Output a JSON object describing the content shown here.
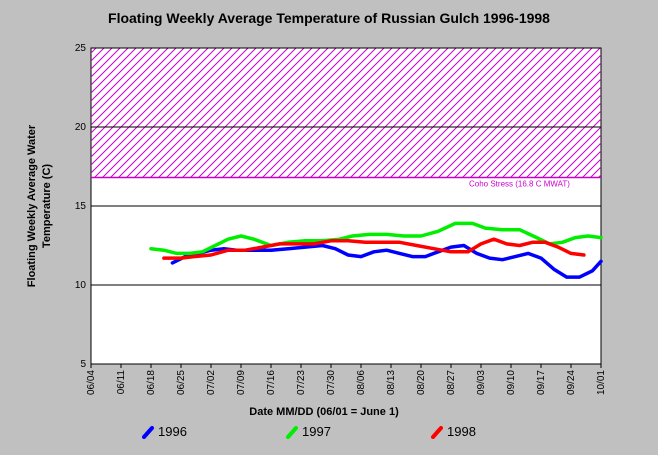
{
  "chart_data": {
    "type": "line",
    "title": "Floating Weekly Average Temperature of Russian Gulch 1996-1998",
    "xlabel": "Date MM/DD (06/01 = June 1)",
    "ylabel": "Floating Weekly Average Water Temperature (C)",
    "ylim": [
      5,
      25
    ],
    "yticks": [
      5,
      10,
      15,
      20,
      25
    ],
    "xlim": [
      "06/04",
      "10/01"
    ],
    "xticks": [
      "06/04",
      "06/11",
      "06/18",
      "06/25",
      "07/02",
      "07/09",
      "07/16",
      "07/23",
      "07/30",
      "08/06",
      "08/13",
      "08/20",
      "08/27",
      "09/03",
      "09/10",
      "09/17",
      "09/24",
      "10/01"
    ],
    "grid": "horizontal",
    "stress_band": {
      "label": "Coho Stress (16.8 C MWAT)",
      "from": 16.8,
      "to": 25,
      "color": "#cc00cc"
    },
    "series": [
      {
        "name": "1996",
        "color": "#0000ff",
        "x": [
          "06/23",
          "06/26",
          "06/29",
          "07/02",
          "07/05",
          "07/08",
          "07/12",
          "07/16",
          "07/20",
          "07/24",
          "07/28",
          "07/31",
          "08/03",
          "08/06",
          "08/09",
          "08/12",
          "08/15",
          "08/18",
          "08/21",
          "08/24",
          "08/27",
          "08/30",
          "09/02",
          "09/05",
          "09/08",
          "09/11",
          "09/14",
          "09/17",
          "09/20",
          "09/23",
          "09/26",
          "09/29",
          "10/01"
        ],
        "values": [
          11.4,
          11.8,
          12.0,
          12.2,
          12.3,
          12.2,
          12.2,
          12.2,
          12.3,
          12.4,
          12.5,
          12.3,
          11.9,
          11.8,
          12.1,
          12.2,
          12.0,
          11.8,
          11.8,
          12.1,
          12.4,
          12.5,
          12.0,
          11.7,
          11.6,
          11.8,
          12.0,
          11.7,
          11.0,
          10.5,
          10.5,
          10.9,
          11.5
        ]
      },
      {
        "name": "1997",
        "color": "#00ee00",
        "x": [
          "06/18",
          "06/21",
          "06/24",
          "06/27",
          "06/30",
          "07/03",
          "07/06",
          "07/09",
          "07/12",
          "07/16",
          "07/20",
          "07/24",
          "07/28",
          "08/01",
          "08/04",
          "08/08",
          "08/12",
          "08/16",
          "08/20",
          "08/24",
          "08/28",
          "09/01",
          "09/04",
          "09/08",
          "09/12",
          "09/16",
          "09/19",
          "09/22",
          "09/25",
          "09/28",
          "10/01"
        ],
        "values": [
          12.3,
          12.2,
          12.0,
          12.0,
          12.1,
          12.5,
          12.9,
          13.1,
          12.9,
          12.5,
          12.7,
          12.8,
          12.8,
          12.9,
          13.1,
          13.2,
          13.2,
          13.1,
          13.1,
          13.4,
          13.9,
          13.9,
          13.6,
          13.5,
          13.5,
          13.0,
          12.6,
          12.7,
          13.0,
          13.1,
          13.0
        ]
      },
      {
        "name": "1998",
        "color": "#ff0000",
        "x": [
          "06/21",
          "06/25",
          "06/28",
          "07/02",
          "07/06",
          "07/10",
          "07/14",
          "07/18",
          "07/22",
          "07/26",
          "07/30",
          "08/03",
          "08/07",
          "08/11",
          "08/15",
          "08/19",
          "08/23",
          "08/27",
          "08/31",
          "09/03",
          "09/06",
          "09/09",
          "09/12",
          "09/15",
          "09/18",
          "09/21",
          "09/24",
          "09/27"
        ],
        "values": [
          11.7,
          11.7,
          11.8,
          11.9,
          12.2,
          12.2,
          12.4,
          12.6,
          12.6,
          12.6,
          12.8,
          12.8,
          12.7,
          12.7,
          12.7,
          12.5,
          12.3,
          12.1,
          12.1,
          12.6,
          12.9,
          12.6,
          12.5,
          12.7,
          12.7,
          12.4,
          12.0,
          11.9
        ]
      }
    ]
  }
}
